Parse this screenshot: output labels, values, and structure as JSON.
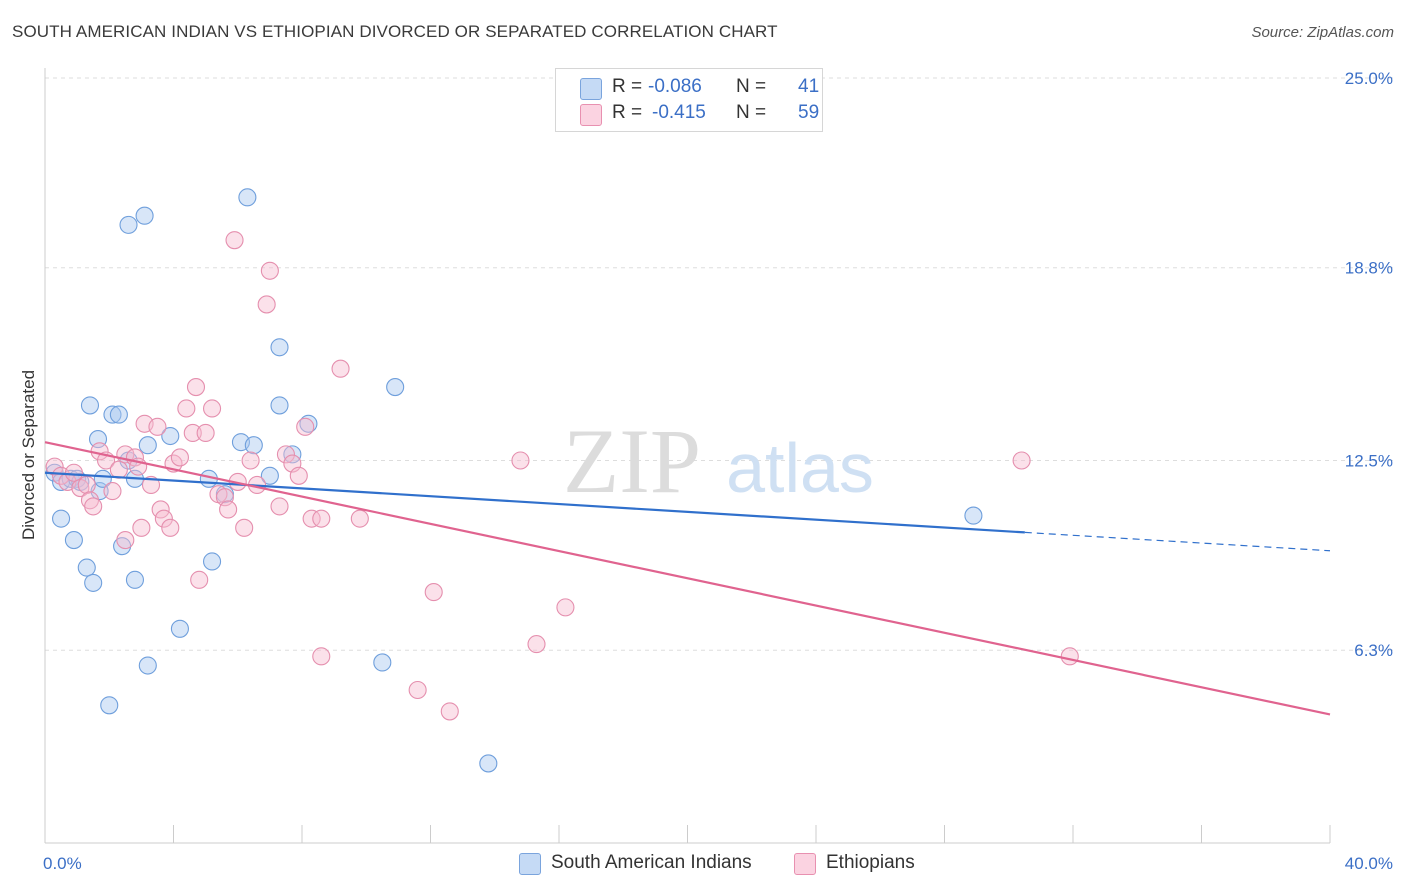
{
  "title": "SOUTH AMERICAN INDIAN VS ETHIOPIAN DIVORCED OR SEPARATED CORRELATION CHART",
  "source": "Source: ZipAtlas.com",
  "watermark": {
    "zip": "ZIP",
    "atlas": "atlas"
  },
  "legend": {
    "r_label": "R =",
    "n_label": "N =",
    "rows": [
      {
        "r": "-0.086",
        "n": "41",
        "color": "#a9c8f0",
        "border": "#7aa4dd"
      },
      {
        "r": "-0.415",
        "n": "59",
        "color": "#f7bcd0",
        "border": "#e890b0"
      }
    ]
  },
  "chart_data": {
    "type": "scatter",
    "title": "SOUTH AMERICAN INDIAN VS ETHIOPIAN DIVORCED OR SEPARATED CORRELATION CHART",
    "xlabel": "",
    "ylabel": "Divorced or Separated",
    "xlim": [
      0,
      40
    ],
    "ylim": [
      0,
      25
    ],
    "x_tick_labels": {
      "min": "0.0%",
      "max": "40.0%"
    },
    "y_ticks": [
      6.3,
      12.5,
      18.8,
      25.0
    ],
    "y_tick_labels": [
      "6.3%",
      "12.5%",
      "18.8%",
      "25.0%"
    ],
    "grid": true,
    "legend_position": "top-center",
    "series": [
      {
        "name": "South American Indians",
        "color": "#a9c8f0",
        "stroke": "#6f9fdc",
        "trend_color": "#3070cc",
        "trend": {
          "x0": 0,
          "y0": 12.1,
          "x1": 30.5,
          "y1": 10.15,
          "dash_to_x": 40,
          "dash_to_y": 9.55
        },
        "points": [
          [
            0.3,
            12.1
          ],
          [
            0.5,
            11.8
          ],
          [
            0.8,
            11.9
          ],
          [
            1.0,
            11.9
          ],
          [
            1.1,
            11.8
          ],
          [
            0.5,
            10.6
          ],
          [
            0.9,
            9.9
          ],
          [
            1.3,
            9.0
          ],
          [
            1.5,
            8.5
          ],
          [
            1.7,
            11.5
          ],
          [
            1.8,
            11.9
          ],
          [
            1.4,
            14.3
          ],
          [
            1.65,
            13.2
          ],
          [
            2.1,
            14.0
          ],
          [
            2.3,
            14.0
          ],
          [
            2.6,
            12.5
          ],
          [
            2.4,
            9.7
          ],
          [
            2.8,
            11.9
          ],
          [
            2.8,
            8.6
          ],
          [
            3.2,
            13.0
          ],
          [
            3.9,
            13.3
          ],
          [
            4.2,
            7.0
          ],
          [
            3.2,
            5.8
          ],
          [
            2.0,
            4.5
          ],
          [
            2.6,
            20.2
          ],
          [
            3.1,
            20.5
          ],
          [
            6.3,
            21.1
          ],
          [
            7.3,
            16.2
          ],
          [
            7.3,
            14.3
          ],
          [
            8.2,
            13.7
          ],
          [
            6.1,
            13.1
          ],
          [
            6.5,
            13.0
          ],
          [
            7.7,
            12.7
          ],
          [
            7.0,
            12.0
          ],
          [
            5.1,
            11.9
          ],
          [
            5.6,
            11.4
          ],
          [
            5.2,
            9.2
          ],
          [
            10.9,
            14.9
          ],
          [
            10.5,
            5.9
          ],
          [
            13.8,
            2.6
          ],
          [
            28.9,
            10.7
          ]
        ]
      },
      {
        "name": "Ethiopians",
        "color": "#f7bcd0",
        "stroke": "#e58fae",
        "trend_color": "#e0638f",
        "trend": {
          "x0": 0,
          "y0": 13.1,
          "x1": 40,
          "y1": 4.2
        },
        "points": [
          [
            0.3,
            12.3
          ],
          [
            0.5,
            12.0
          ],
          [
            0.7,
            11.8
          ],
          [
            0.9,
            12.1
          ],
          [
            1.1,
            11.6
          ],
          [
            1.3,
            11.7
          ],
          [
            1.4,
            11.2
          ],
          [
            1.5,
            11.0
          ],
          [
            1.7,
            12.8
          ],
          [
            1.9,
            12.5
          ],
          [
            2.1,
            11.5
          ],
          [
            2.3,
            12.2
          ],
          [
            2.5,
            12.7
          ],
          [
            2.5,
            9.9
          ],
          [
            2.8,
            12.6
          ],
          [
            2.9,
            12.3
          ],
          [
            3.0,
            10.3
          ],
          [
            3.1,
            13.7
          ],
          [
            3.3,
            11.7
          ],
          [
            3.5,
            13.6
          ],
          [
            3.6,
            10.9
          ],
          [
            3.7,
            10.6
          ],
          [
            3.9,
            10.3
          ],
          [
            4.0,
            12.4
          ],
          [
            4.2,
            12.6
          ],
          [
            4.4,
            14.2
          ],
          [
            4.6,
            13.4
          ],
          [
            4.7,
            14.9
          ],
          [
            4.8,
            8.6
          ],
          [
            5.0,
            13.4
          ],
          [
            5.2,
            14.2
          ],
          [
            5.4,
            11.4
          ],
          [
            5.6,
            11.3
          ],
          [
            5.7,
            10.9
          ],
          [
            5.9,
            19.7
          ],
          [
            6.0,
            11.8
          ],
          [
            6.2,
            10.3
          ],
          [
            6.4,
            12.5
          ],
          [
            6.6,
            11.7
          ],
          [
            6.9,
            17.6
          ],
          [
            7.0,
            18.7
          ],
          [
            7.3,
            11.0
          ],
          [
            7.5,
            12.7
          ],
          [
            7.7,
            12.4
          ],
          [
            7.9,
            12.0
          ],
          [
            8.1,
            13.6
          ],
          [
            8.3,
            10.6
          ],
          [
            8.6,
            10.6
          ],
          [
            9.2,
            15.5
          ],
          [
            9.8,
            10.6
          ],
          [
            11.6,
            5.0
          ],
          [
            12.1,
            8.2
          ],
          [
            12.6,
            4.3
          ],
          [
            8.6,
            6.1
          ],
          [
            14.8,
            12.5
          ],
          [
            15.3,
            6.5
          ],
          [
            16.2,
            7.7
          ],
          [
            31.9,
            6.1
          ],
          [
            30.4,
            12.5
          ]
        ]
      }
    ]
  }
}
